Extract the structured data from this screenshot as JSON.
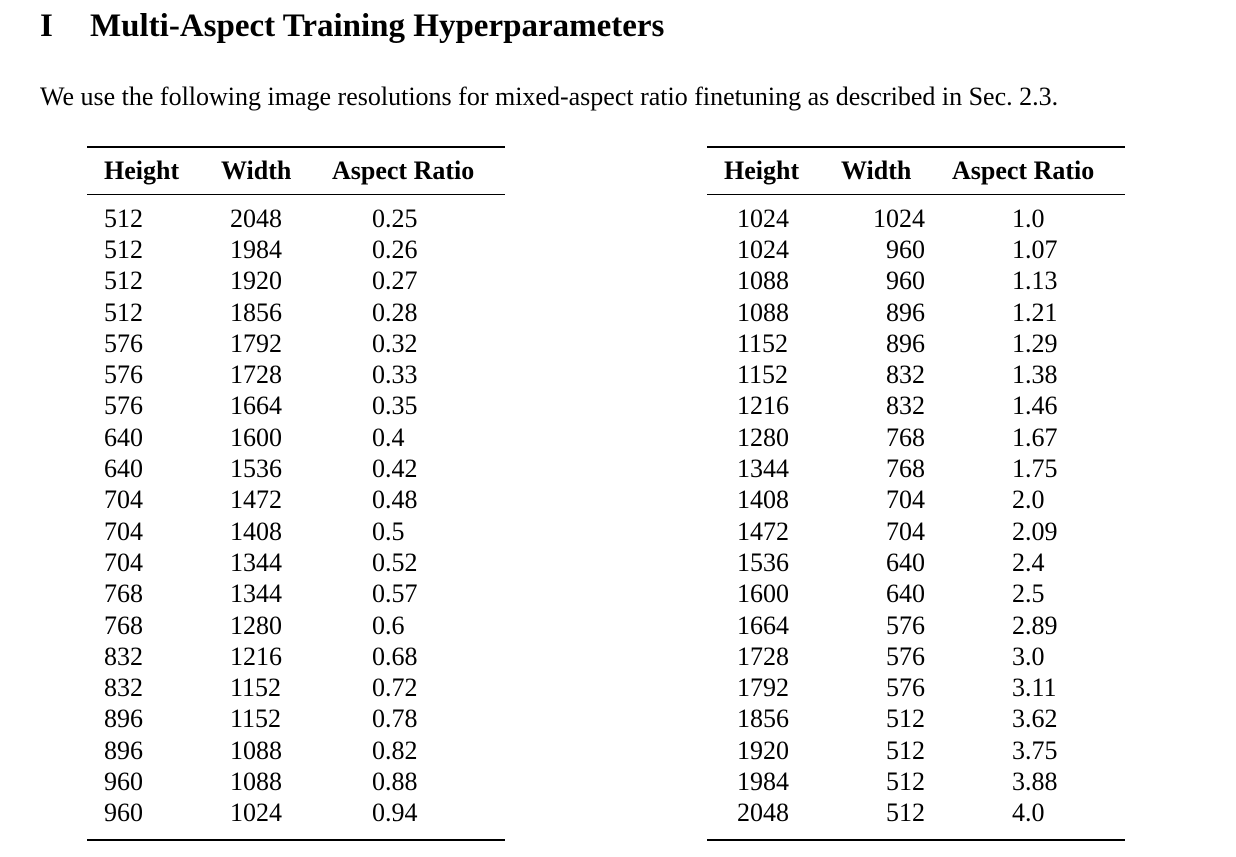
{
  "section": {
    "number": "I",
    "title": "Multi-Aspect Training Hyperparameters"
  },
  "intro": "We use the following image resolutions for mixed-aspect ratio finetuning as described in Sec. 2.3.",
  "columns": [
    "Height",
    "Width",
    "Aspect Ratio"
  ],
  "tables": [
    {
      "rows": [
        [
          "512",
          "2048",
          "0.25"
        ],
        [
          "512",
          "1984",
          "0.26"
        ],
        [
          "512",
          "1920",
          "0.27"
        ],
        [
          "512",
          "1856",
          "0.28"
        ],
        [
          "576",
          "1792",
          "0.32"
        ],
        [
          "576",
          "1728",
          "0.33"
        ],
        [
          "576",
          "1664",
          "0.35"
        ],
        [
          "640",
          "1600",
          "0.4"
        ],
        [
          "640",
          "1536",
          "0.42"
        ],
        [
          "704",
          "1472",
          "0.48"
        ],
        [
          "704",
          "1408",
          "0.5"
        ],
        [
          "704",
          "1344",
          "0.52"
        ],
        [
          "768",
          "1344",
          "0.57"
        ],
        [
          "768",
          "1280",
          "0.6"
        ],
        [
          "832",
          "1216",
          "0.68"
        ],
        [
          "832",
          "1152",
          "0.72"
        ],
        [
          "896",
          "1152",
          "0.78"
        ],
        [
          "896",
          "1088",
          "0.82"
        ],
        [
          "960",
          "1088",
          "0.88"
        ],
        [
          "960",
          "1024",
          "0.94"
        ]
      ]
    },
    {
      "rows": [
        [
          "1024",
          "1024",
          "1.0"
        ],
        [
          "1024",
          "960",
          "1.07"
        ],
        [
          "1088",
          "960",
          "1.13"
        ],
        [
          "1088",
          "896",
          "1.21"
        ],
        [
          "1152",
          "896",
          "1.29"
        ],
        [
          "1152",
          "832",
          "1.38"
        ],
        [
          "1216",
          "832",
          "1.46"
        ],
        [
          "1280",
          "768",
          "1.67"
        ],
        [
          "1344",
          "768",
          "1.75"
        ],
        [
          "1408",
          "704",
          "2.0"
        ],
        [
          "1472",
          "704",
          "2.09"
        ],
        [
          "1536",
          "640",
          "2.4"
        ],
        [
          "1600",
          "640",
          "2.5"
        ],
        [
          "1664",
          "576",
          "2.89"
        ],
        [
          "1728",
          "576",
          "3.0"
        ],
        [
          "1792",
          "576",
          "3.11"
        ],
        [
          "1856",
          "512",
          "3.62"
        ],
        [
          "1920",
          "512",
          "3.75"
        ],
        [
          "1984",
          "512",
          "3.88"
        ],
        [
          "2048",
          "512",
          "4.0"
        ]
      ]
    }
  ]
}
